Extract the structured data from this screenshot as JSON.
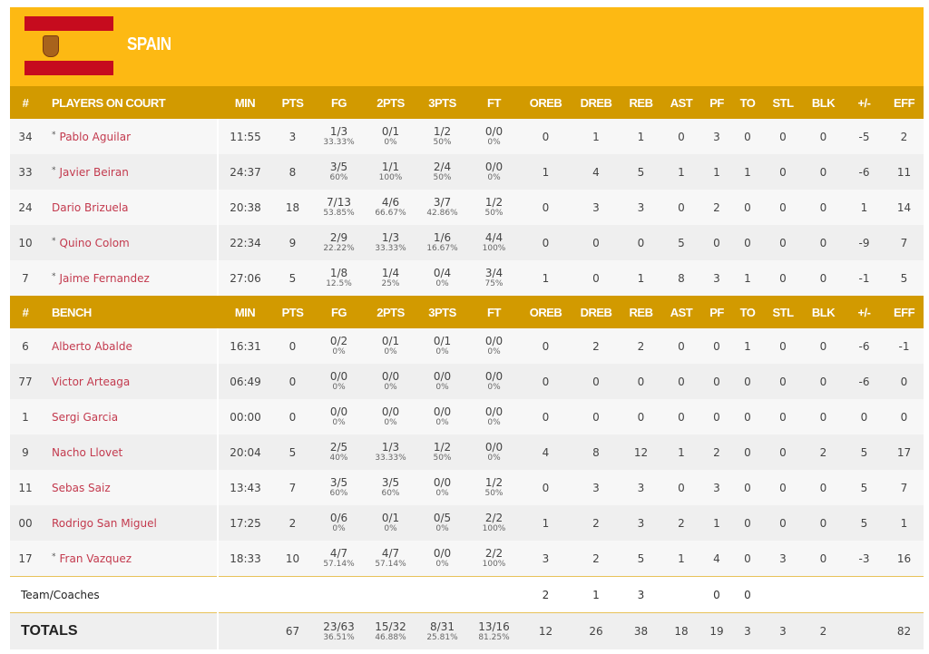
{
  "team": {
    "name": "SPAIN",
    "flag": "spain-flag",
    "colors": {
      "header": "#fdb913",
      "table_header": "#d29a00",
      "player_link": "#c33a4e"
    }
  },
  "columns": [
    "MIN",
    "PTS",
    "FG",
    "2PTS",
    "3PTS",
    "FT",
    "OREB",
    "DREB",
    "REB",
    "AST",
    "PF",
    "TO",
    "STL",
    "BLK",
    "+/-",
    "EFF"
  ],
  "number_header": "#",
  "starters_header": "PLAYERS ON COURT",
  "bench_header": "BENCH",
  "starters": [
    {
      "no": "34",
      "star": true,
      "name": "Pablo Aguilar",
      "min": "11:55",
      "pts": "3",
      "fg": [
        "1/3",
        "33.33%"
      ],
      "p2": [
        "0/1",
        "0%"
      ],
      "p3": [
        "1/2",
        "50%"
      ],
      "ft": [
        "0/0",
        "0%"
      ],
      "stats": [
        "0",
        "1",
        "1",
        "0",
        "3",
        "0",
        "0",
        "0",
        "-5",
        "2"
      ]
    },
    {
      "no": "33",
      "star": true,
      "name": "Javier Beiran",
      "min": "24:37",
      "pts": "8",
      "fg": [
        "3/5",
        "60%"
      ],
      "p2": [
        "1/1",
        "100%"
      ],
      "p3": [
        "2/4",
        "50%"
      ],
      "ft": [
        "0/0",
        "0%"
      ],
      "stats": [
        "1",
        "4",
        "5",
        "1",
        "1",
        "1",
        "0",
        "0",
        "-6",
        "11"
      ]
    },
    {
      "no": "24",
      "star": false,
      "name": "Dario Brizuela",
      "min": "20:38",
      "pts": "18",
      "fg": [
        "7/13",
        "53.85%"
      ],
      "p2": [
        "4/6",
        "66.67%"
      ],
      "p3": [
        "3/7",
        "42.86%"
      ],
      "ft": [
        "1/2",
        "50%"
      ],
      "stats": [
        "0",
        "3",
        "3",
        "0",
        "2",
        "0",
        "0",
        "0",
        "1",
        "14"
      ]
    },
    {
      "no": "10",
      "star": true,
      "name": "Quino Colom",
      "min": "22:34",
      "pts": "9",
      "fg": [
        "2/9",
        "22.22%"
      ],
      "p2": [
        "1/3",
        "33.33%"
      ],
      "p3": [
        "1/6",
        "16.67%"
      ],
      "ft": [
        "4/4",
        "100%"
      ],
      "stats": [
        "0",
        "0",
        "0",
        "5",
        "0",
        "0",
        "0",
        "0",
        "-9",
        "7"
      ]
    },
    {
      "no": "7",
      "star": true,
      "name": "Jaime Fernandez",
      "min": "27:06",
      "pts": "5",
      "fg": [
        "1/8",
        "12.5%"
      ],
      "p2": [
        "1/4",
        "25%"
      ],
      "p3": [
        "0/4",
        "0%"
      ],
      "ft": [
        "3/4",
        "75%"
      ],
      "stats": [
        "1",
        "0",
        "1",
        "8",
        "3",
        "1",
        "0",
        "0",
        "-1",
        "5"
      ]
    }
  ],
  "bench": [
    {
      "no": "6",
      "star": false,
      "name": "Alberto Abalde",
      "min": "16:31",
      "pts": "0",
      "fg": [
        "0/2",
        "0%"
      ],
      "p2": [
        "0/1",
        "0%"
      ],
      "p3": [
        "0/1",
        "0%"
      ],
      "ft": [
        "0/0",
        "0%"
      ],
      "stats": [
        "0",
        "2",
        "2",
        "0",
        "0",
        "1",
        "0",
        "0",
        "-6",
        "-1"
      ]
    },
    {
      "no": "77",
      "star": false,
      "name": "Victor Arteaga",
      "min": "06:49",
      "pts": "0",
      "fg": [
        "0/0",
        "0%"
      ],
      "p2": [
        "0/0",
        "0%"
      ],
      "p3": [
        "0/0",
        "0%"
      ],
      "ft": [
        "0/0",
        "0%"
      ],
      "stats": [
        "0",
        "0",
        "0",
        "0",
        "0",
        "0",
        "0",
        "0",
        "-6",
        "0"
      ]
    },
    {
      "no": "1",
      "star": false,
      "name": "Sergi Garcia",
      "min": "00:00",
      "pts": "0",
      "fg": [
        "0/0",
        "0%"
      ],
      "p2": [
        "0/0",
        "0%"
      ],
      "p3": [
        "0/0",
        "0%"
      ],
      "ft": [
        "0/0",
        "0%"
      ],
      "stats": [
        "0",
        "0",
        "0",
        "0",
        "0",
        "0",
        "0",
        "0",
        "0",
        "0"
      ]
    },
    {
      "no": "9",
      "star": false,
      "name": "Nacho Llovet",
      "min": "20:04",
      "pts": "5",
      "fg": [
        "2/5",
        "40%"
      ],
      "p2": [
        "1/3",
        "33.33%"
      ],
      "p3": [
        "1/2",
        "50%"
      ],
      "ft": [
        "0/0",
        "0%"
      ],
      "stats": [
        "4",
        "8",
        "12",
        "1",
        "2",
        "0",
        "0",
        "2",
        "5",
        "17"
      ]
    },
    {
      "no": "11",
      "star": false,
      "name": "Sebas Saiz",
      "min": "13:43",
      "pts": "7",
      "fg": [
        "3/5",
        "60%"
      ],
      "p2": [
        "3/5",
        "60%"
      ],
      "p3": [
        "0/0",
        "0%"
      ],
      "ft": [
        "1/2",
        "50%"
      ],
      "stats": [
        "0",
        "3",
        "3",
        "0",
        "3",
        "0",
        "0",
        "0",
        "5",
        "7"
      ]
    },
    {
      "no": "00",
      "star": false,
      "name": "Rodrigo San Miguel",
      "min": "17:25",
      "pts": "2",
      "fg": [
        "0/6",
        "0%"
      ],
      "p2": [
        "0/1",
        "0%"
      ],
      "p3": [
        "0/5",
        "0%"
      ],
      "ft": [
        "2/2",
        "100%"
      ],
      "stats": [
        "1",
        "2",
        "3",
        "2",
        "1",
        "0",
        "0",
        "0",
        "5",
        "1"
      ]
    },
    {
      "no": "17",
      "star": true,
      "name": "Fran Vazquez",
      "min": "18:33",
      "pts": "10",
      "fg": [
        "4/7",
        "57.14%"
      ],
      "p2": [
        "4/7",
        "57.14%"
      ],
      "p3": [
        "0/0",
        "0%"
      ],
      "ft": [
        "2/2",
        "100%"
      ],
      "stats": [
        "3",
        "2",
        "5",
        "1",
        "4",
        "0",
        "3",
        "0",
        "-3",
        "16"
      ]
    }
  ],
  "team_row": {
    "label": "Team/Coaches",
    "stats": [
      "2",
      "1",
      "3",
      "",
      "0",
      "0",
      "",
      "",
      "",
      ""
    ]
  },
  "totals": {
    "label": "TOTALS",
    "min": "",
    "pts": "67",
    "fg": [
      "23/63",
      "36.51%"
    ],
    "p2": [
      "15/32",
      "46.88%"
    ],
    "p3": [
      "8/31",
      "25.81%"
    ],
    "ft": [
      "13/16",
      "81.25%"
    ],
    "stats": [
      "12",
      "26",
      "38",
      "18",
      "19",
      "3",
      "3",
      "2",
      "",
      "82"
    ]
  }
}
